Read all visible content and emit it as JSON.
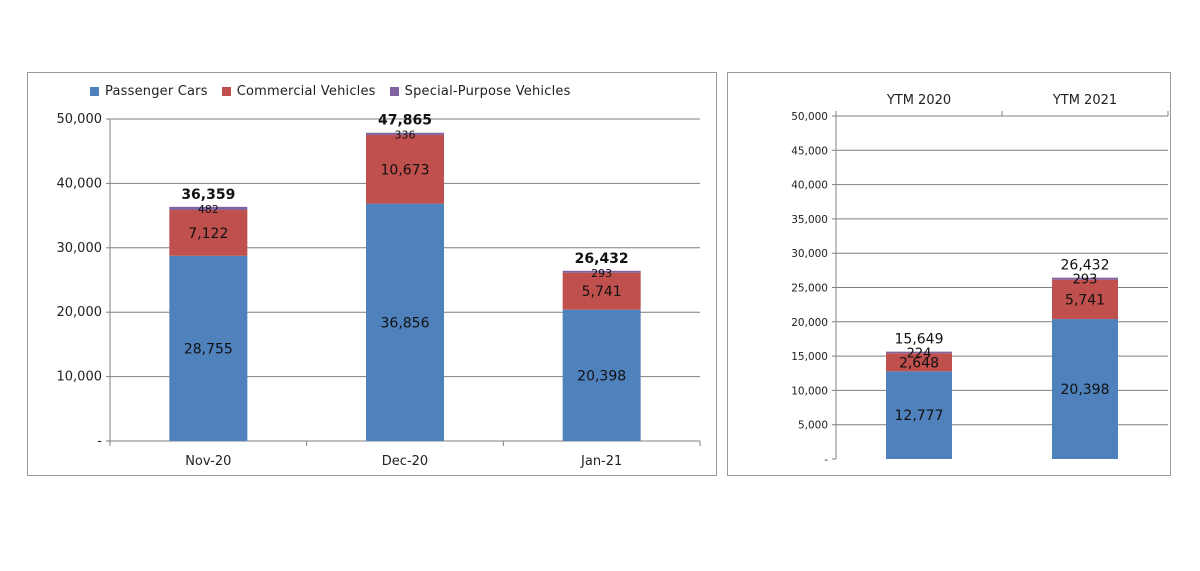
{
  "colors": {
    "passenger": "#4f81bd",
    "commercial": "#c0504d",
    "special": "#8064a2",
    "grid": "#7f7f7f",
    "axis": "#7f7f7f"
  },
  "legend": [
    {
      "name": "Passenger Cars",
      "color_key": "passenger"
    },
    {
      "name": "Commercial Vehicles",
      "color_key": "commercial"
    },
    {
      "name": "Special-Purpose Vehicles",
      "color_key": "special"
    }
  ],
  "chart_data": [
    {
      "type": "bar",
      "stacked": true,
      "categories": [
        "Nov-20",
        "Dec-20",
        "Jan-21"
      ],
      "series": [
        {
          "name": "Passenger Cars",
          "values": [
            28755,
            36856,
            20398
          ],
          "labels": [
            "28,755",
            "36,856",
            "20,398"
          ]
        },
        {
          "name": "Commercial Vehicles",
          "values": [
            7122,
            10673,
            5741
          ],
          "labels": [
            "7,122",
            "10,673",
            "5,741"
          ]
        },
        {
          "name": "Special-Purpose Vehicles",
          "values": [
            482,
            336,
            293
          ],
          "labels": [
            "482",
            "336",
            "293"
          ]
        }
      ],
      "totals": [
        "36,359",
        "47,865",
        "26,432"
      ],
      "ylim": [
        0,
        50000
      ],
      "yticks": [
        "-",
        "10,000",
        "20,000",
        "30,000",
        "40,000",
        "50,000"
      ],
      "grid": true,
      "legend_position": "top"
    },
    {
      "type": "bar",
      "stacked": true,
      "categories": [
        "YTM 2020",
        "YTM 2021"
      ],
      "series": [
        {
          "name": "Passenger Cars",
          "values": [
            12777,
            20398
          ],
          "labels": [
            "12,777",
            "20,398"
          ]
        },
        {
          "name": "Commercial Vehicles",
          "values": [
            2648,
            5741
          ],
          "labels": [
            "2,648",
            "5,741"
          ]
        },
        {
          "name": "Special-Purpose Vehicles",
          "values": [
            224,
            293
          ],
          "labels": [
            "224",
            "293"
          ]
        }
      ],
      "totals": [
        "15,649",
        "26,432"
      ],
      "ylim": [
        0,
        50000
      ],
      "yticks": [
        "-",
        "5,000",
        "10,000",
        "15,000",
        "20,000",
        "25,000",
        "30,000",
        "35,000",
        "40,000",
        "45,000",
        "50,000"
      ],
      "grid": true,
      "category_axis_position": "top"
    }
  ]
}
